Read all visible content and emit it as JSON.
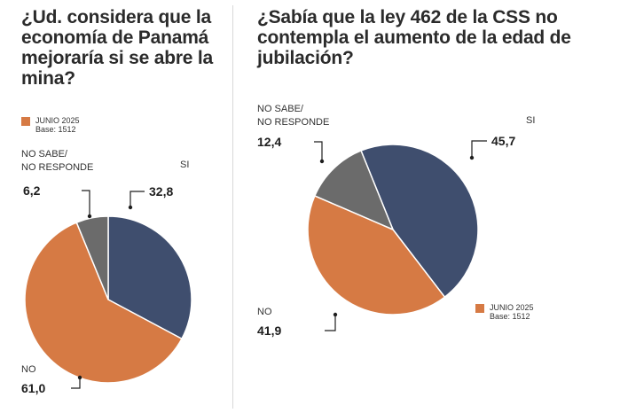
{
  "colors": {
    "si": "#3f4e6e",
    "no": "#d67a44",
    "nsnr": "#6b6b6b",
    "accent": "#d67a44"
  },
  "legend": {
    "period": "JUNIO 2025",
    "base": "Base: 1512"
  },
  "chart_data": [
    {
      "type": "pie",
      "title": "¿Ud. considera que la economía de Panamá mejoraría si se abre la mina?",
      "slices": [
        {
          "key": "si",
          "label": "SI",
          "value": 32.8,
          "display": "32,8"
        },
        {
          "key": "no",
          "label": "NO",
          "value": 61.0,
          "display": "61,0"
        },
        {
          "key": "nsnr",
          "label": [
            "NO SABE/",
            "NO RESPONDE"
          ],
          "value": 6.2,
          "display": "6,2"
        }
      ]
    },
    {
      "type": "pie",
      "title": "¿Sabía que la ley 462 de la CSS no contempla el aumento de la edad de jubilación?",
      "slices": [
        {
          "key": "si",
          "label": "SI",
          "value": 45.7,
          "display": "45,7"
        },
        {
          "key": "no",
          "label": "NO",
          "value": 41.9,
          "display": "41,9"
        },
        {
          "key": "nsnr",
          "label": [
            "NO SABE/",
            "NO RESPONDE"
          ],
          "value": 12.4,
          "display": "12,4"
        }
      ]
    }
  ]
}
